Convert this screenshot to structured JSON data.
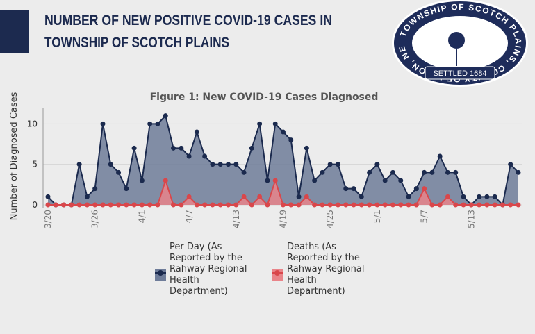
{
  "header": {
    "title_lines": [
      "NUMBER OF NEW POSITIVE COVID-19 CASES IN",
      "TOWNSHIP OF SCOTCH PLAINS"
    ]
  },
  "seal": {
    "ring_text": "TOWNSHIP OF SCOTCH PLAINS, COUNTY OF UNION, NEW JERSEY",
    "banner": "SETTLED 1684"
  },
  "chart_data": {
    "type": "area",
    "title": "Figure 1: New COVID-19 Cases Diagnosed",
    "y_label": "Number of Diagnosed Cases",
    "categories": [
      "3/20",
      null,
      null,
      null,
      null,
      null,
      "3/26",
      null,
      null,
      null,
      null,
      null,
      "4/1",
      null,
      null,
      null,
      null,
      null,
      "4/7",
      null,
      null,
      null,
      null,
      null,
      "4/13",
      null,
      null,
      null,
      null,
      null,
      "4/19",
      null,
      null,
      null,
      null,
      null,
      "4/25",
      null,
      null,
      null,
      null,
      null,
      "5/1",
      null,
      null,
      null,
      null,
      null,
      "5/7",
      null,
      null,
      null,
      null,
      null,
      "5/13",
      null,
      null,
      null,
      null,
      null,
      null
    ],
    "series": [
      {
        "name": "Per Day (As Reported by the Rahway Regional Health Department)",
        "color": "#1b2a4e",
        "fill": "#6e7c99",
        "values": [
          1,
          0,
          0,
          0,
          5,
          1,
          2,
          10,
          5,
          4,
          2,
          7,
          3,
          10,
          10,
          11,
          7,
          7,
          6,
          9,
          6,
          5,
          5,
          5,
          5,
          4,
          7,
          10,
          3,
          10,
          9,
          8,
          1,
          7,
          3,
          4,
          5,
          5,
          2,
          2,
          1,
          4,
          5,
          3,
          4,
          3,
          1,
          2,
          4,
          4,
          6,
          4,
          4,
          1,
          0,
          1,
          1,
          1,
          0,
          5,
          4
        ]
      },
      {
        "name": "Deaths (As Reported by the Rahway Regional Health Department)",
        "color": "#d9474b",
        "fill": "#e98489",
        "values": [
          0,
          0,
          0,
          0,
          0,
          0,
          0,
          0,
          0,
          0,
          0,
          0,
          0,
          0,
          0,
          3,
          0,
          0,
          1,
          0,
          0,
          0,
          0,
          0,
          0,
          1,
          0,
          1,
          0,
          3,
          0,
          0,
          0,
          1,
          0,
          0,
          0,
          0,
          0,
          0,
          0,
          0,
          0,
          0,
          0,
          0,
          0,
          0,
          2,
          0,
          0,
          1,
          0,
          0,
          0,
          0,
          0,
          0,
          0,
          0,
          0
        ]
      }
    ],
    "ylim": [
      0,
      12
    ],
    "yticks": [
      0,
      5,
      10
    ],
    "grid": true,
    "legend": "bottom"
  }
}
